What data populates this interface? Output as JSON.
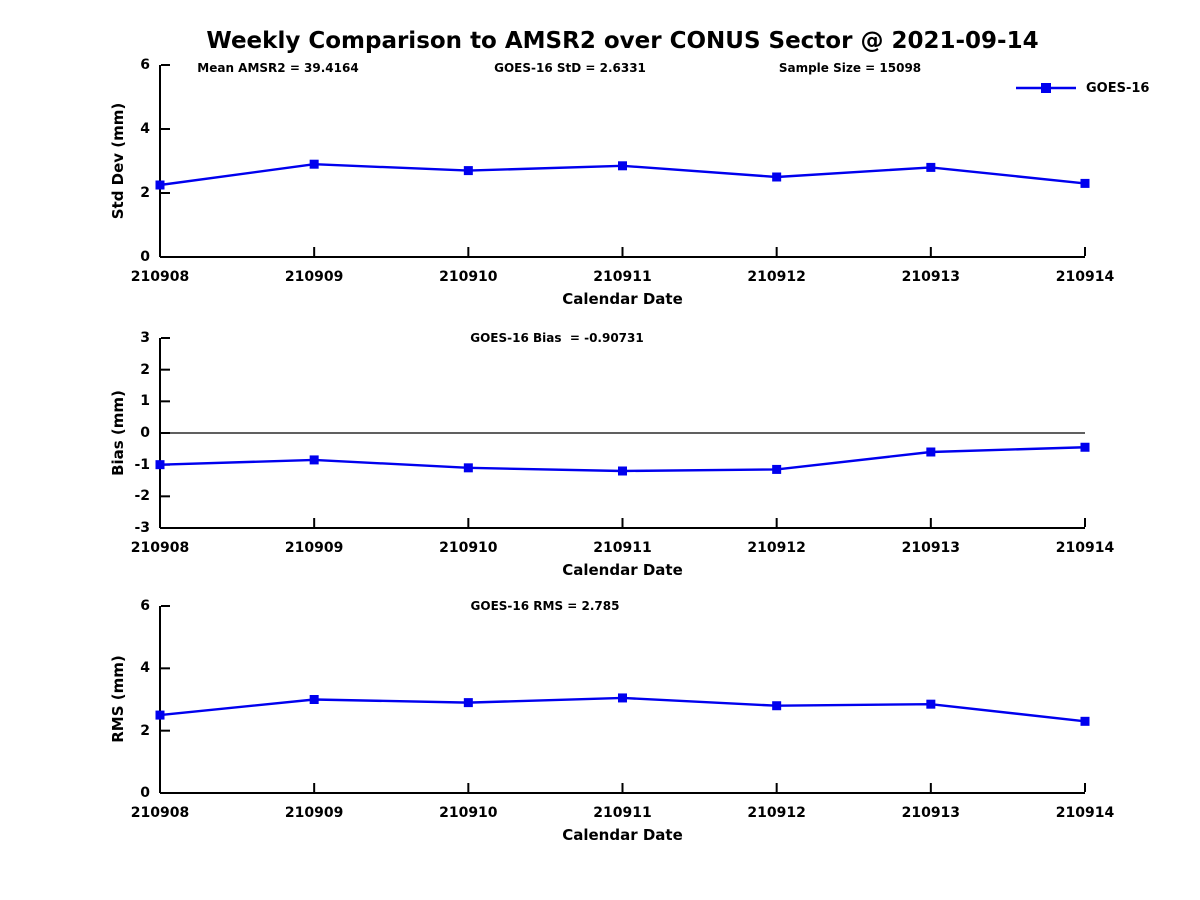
{
  "title": "Weekly Comparison to AMSR2 over CONUS Sector @ 2021-09-14",
  "legend": {
    "label": "GOES-16"
  },
  "colors": {
    "line": "#0000ee",
    "axis": "#000000",
    "text": "#000000",
    "background": "#ffffff"
  },
  "chart_data": [
    {
      "type": "line",
      "name": "std-dev-vs-date",
      "categories": [
        "210908",
        "210909",
        "210910",
        "210911",
        "210912",
        "210913",
        "210914"
      ],
      "series": [
        {
          "name": "GOES-16",
          "values": [
            2.25,
            2.9,
            2.7,
            2.85,
            2.5,
            2.8,
            2.3
          ]
        }
      ],
      "ylabel": "Std Dev (mm)",
      "xlabel": "Calendar Date",
      "ylim": [
        0,
        6
      ],
      "yticks": [
        0,
        2,
        4,
        6
      ],
      "grid": false,
      "zero_line": false,
      "marker": "square",
      "legend_position": "top-right-outside",
      "annotations": [
        "Mean AMSR2 = 39.4164",
        "GOES-16 StD = 2.6331",
        "Sample Size = 15098"
      ]
    },
    {
      "type": "line",
      "name": "bias-vs-date",
      "categories": [
        "210908",
        "210909",
        "210910",
        "210911",
        "210912",
        "210913",
        "210914"
      ],
      "series": [
        {
          "name": "GOES-16",
          "values": [
            -1.0,
            -0.85,
            -1.1,
            -1.2,
            -1.15,
            -0.6,
            -0.45
          ]
        }
      ],
      "ylabel": "Bias (mm)",
      "xlabel": "Calendar Date",
      "ylim": [
        -3,
        3
      ],
      "yticks": [
        3,
        2,
        1,
        0,
        -1,
        -2,
        -3
      ],
      "grid": false,
      "zero_line": true,
      "marker": "square",
      "annotations": [
        "GOES-16 Bias  = -0.90731"
      ]
    },
    {
      "type": "line",
      "name": "rms-vs-date",
      "categories": [
        "210908",
        "210909",
        "210910",
        "210911",
        "210912",
        "210913",
        "210914"
      ],
      "series": [
        {
          "name": "GOES-16",
          "values": [
            2.5,
            3.0,
            2.9,
            3.05,
            2.8,
            2.85,
            2.3
          ]
        }
      ],
      "ylabel": "RMS (mm)",
      "xlabel": "Calendar Date",
      "ylim": [
        0,
        6
      ],
      "yticks": [
        0,
        2,
        4,
        6
      ],
      "grid": false,
      "zero_line": false,
      "marker": "square",
      "annotations": [
        "GOES-16 RMS = 2.785"
      ]
    }
  ]
}
